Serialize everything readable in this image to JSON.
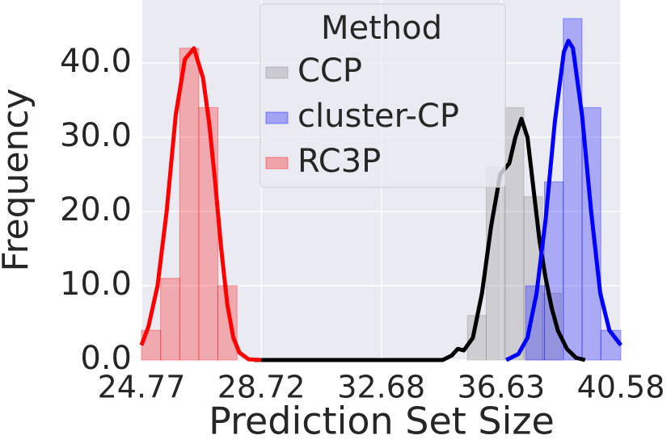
{
  "chart_data": {
    "type": "histogram",
    "xlabel": "Prediction Set Size",
    "ylabel": "Frequency",
    "xlim": [
      24.77,
      40.58
    ],
    "xticks": [
      24.77,
      28.72,
      32.68,
      36.63,
      40.58
    ],
    "ylim": [
      0,
      48.5
    ],
    "yticks": [
      {
        "value": 0,
        "label": "0.0"
      },
      {
        "value": 10,
        "label": "10.0"
      },
      {
        "value": 20,
        "label": "20.0"
      },
      {
        "value": 30,
        "label": "30.0"
      },
      {
        "value": 40,
        "label": "40.0"
      }
    ],
    "grid": true,
    "legend": {
      "title": "Method",
      "loc": "upper center"
    },
    "series": [
      {
        "name": "CCP",
        "color": "#808080",
        "line_color": "#000000",
        "bins": [
          35.52,
          36.14,
          36.76,
          37.38,
          38.0,
          38.62
        ],
        "values": [
          6,
          26,
          34,
          22,
          9
        ],
        "kde_x": [
          28.5,
          34.7,
          35.0,
          35.2,
          35.4,
          35.7,
          36.0,
          36.3,
          36.6,
          36.9,
          37.1,
          37.3,
          37.5,
          37.7,
          37.9,
          38.1,
          38.3,
          38.5,
          38.8,
          39.1,
          39.4
        ],
        "kde_values": [
          0,
          0,
          0.6,
          1.5,
          1.3,
          3,
          9,
          18,
          25,
          26.5,
          30,
          32.5,
          30,
          23,
          16,
          11,
          7,
          4,
          1.5,
          0.3,
          0
        ]
      },
      {
        "name": "cluster-CP",
        "color": "#0000ff",
        "line_color": "#0000ff",
        "bins": [
          37.44,
          38.06,
          38.68,
          39.3,
          39.92,
          40.58
        ],
        "values": [
          10,
          24,
          46,
          34,
          4
        ],
        "kde_x": [
          36.8,
          37.2,
          37.5,
          37.8,
          38.1,
          38.4,
          38.7,
          38.85,
          39.0,
          39.3,
          39.6,
          39.9,
          40.2,
          40.58
        ],
        "kde_values": [
          0,
          0.8,
          3,
          9,
          19,
          32,
          41.5,
          43,
          42,
          33,
          20,
          9,
          4,
          2
        ]
      },
      {
        "name": "RC3P",
        "color": "#ff0000",
        "line_color": "#ff0000",
        "bins": [
          24.77,
          25.4,
          26.03,
          26.66,
          27.29,
          27.92
        ],
        "values": [
          4,
          11,
          42,
          34,
          10
        ],
        "kde_x": [
          24.77,
          25.0,
          25.3,
          25.6,
          25.9,
          26.2,
          26.5,
          26.8,
          27.0,
          27.2,
          27.4,
          27.6,
          27.8,
          28.0,
          28.3,
          28.72
        ],
        "kde_values": [
          2,
          4.5,
          10,
          20,
          33,
          40.5,
          42,
          38,
          32,
          24,
          15,
          7.5,
          3,
          1,
          0.1,
          0
        ]
      }
    ]
  }
}
